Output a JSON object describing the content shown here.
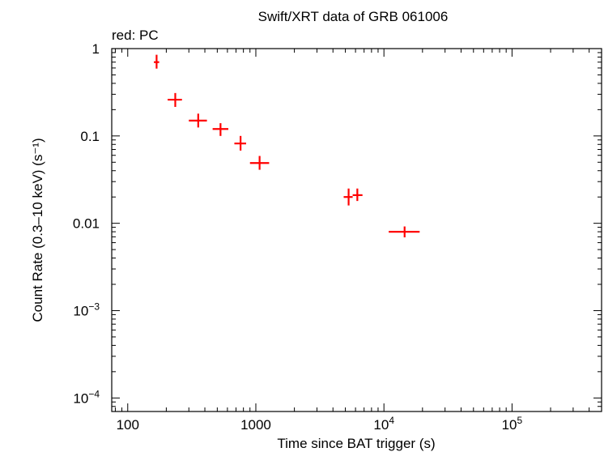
{
  "chart_data": {
    "type": "scatter",
    "title": "Swift/XRT data of GRB 061006",
    "subtitle": "red: PC",
    "xlabel": "Time since BAT trigger (s)",
    "ylabel": "Count Rate (0.3–10 keV) (s⁻¹)",
    "xscale": "log",
    "yscale": "log",
    "xlim": [
      75,
      500000
    ],
    "ylim": [
      7e-05,
      1
    ],
    "grid": false,
    "x_ticks": [
      {
        "value": 100,
        "label": "100"
      },
      {
        "value": 1000,
        "label": "1000"
      },
      {
        "value": 10000,
        "label": "10",
        "sup": "4"
      },
      {
        "value": 100000,
        "label": "10",
        "sup": "5"
      }
    ],
    "y_ticks": [
      {
        "value": 1,
        "label": "1"
      },
      {
        "value": 0.1,
        "label": "0.1"
      },
      {
        "value": 0.01,
        "label": "0.01"
      },
      {
        "value": 0.001,
        "label": "10",
        "sup": "−3"
      },
      {
        "value": 0.0001,
        "label": "10",
        "sup": "−4"
      }
    ],
    "series": [
      {
        "color": "#ff0000",
        "points": [
          {
            "x": 168,
            "xlo": 160,
            "xhi": 176,
            "y": 0.7,
            "ylo": 0.59,
            "yhi": 0.85
          },
          {
            "x": 235,
            "xlo": 205,
            "xhi": 265,
            "y": 0.26,
            "ylo": 0.215,
            "yhi": 0.31
          },
          {
            "x": 355,
            "xlo": 300,
            "xhi": 415,
            "y": 0.15,
            "ylo": 0.125,
            "yhi": 0.18
          },
          {
            "x": 530,
            "xlo": 460,
            "xhi": 610,
            "y": 0.12,
            "ylo": 0.1,
            "yhi": 0.14
          },
          {
            "x": 760,
            "xlo": 680,
            "xhi": 840,
            "y": 0.082,
            "ylo": 0.068,
            "yhi": 0.1
          },
          {
            "x": 1070,
            "xlo": 900,
            "xhi": 1270,
            "y": 0.049,
            "ylo": 0.041,
            "yhi": 0.059
          },
          {
            "x": 5300,
            "xlo": 4850,
            "xhi": 5700,
            "y": 0.02,
            "ylo": 0.016,
            "yhi": 0.025
          },
          {
            "x": 6200,
            "xlo": 5700,
            "xhi": 6800,
            "y": 0.021,
            "ylo": 0.018,
            "yhi": 0.025
          },
          {
            "x": 14500,
            "xlo": 10900,
            "xhi": 19000,
            "y": 0.008,
            "ylo": 0.0069,
            "yhi": 0.0092
          }
        ]
      }
    ]
  }
}
